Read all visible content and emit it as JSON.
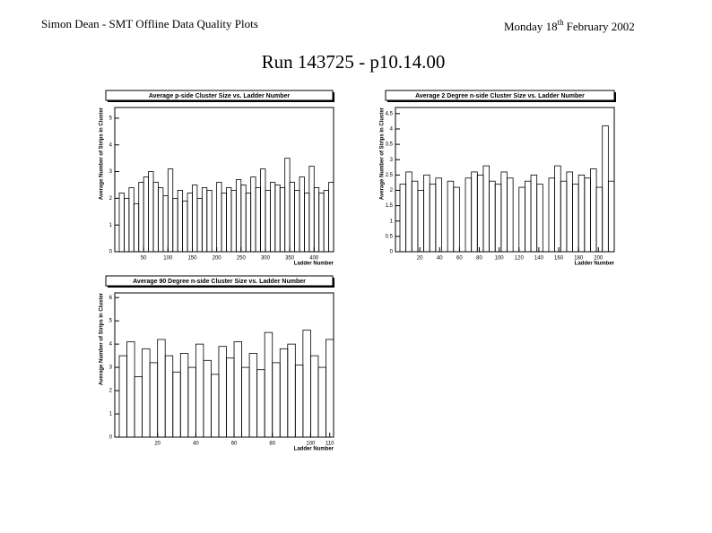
{
  "header": {
    "left": "Simon Dean - SMT Offline Data Quality Plots",
    "date_day": "Monday 18",
    "date_sup": "th",
    "date_rest": "February 2002",
    "title": "Run 143725 - p10.14.00"
  },
  "chart_data": [
    {
      "type": "histogram",
      "title": "Average p-side Cluster Size vs. Ladder Number",
      "x_label": "Ladder Number",
      "y_label": "Average Number of Strips in Cluster",
      "bins": [
        0,
        10,
        20,
        30,
        40,
        50,
        60,
        70,
        80,
        90,
        100,
        110,
        120,
        130,
        140,
        150,
        160,
        170,
        180,
        190,
        200,
        210,
        220,
        230,
        240,
        250,
        260,
        270,
        280,
        290,
        300,
        310,
        320,
        330,
        340,
        350,
        360,
        370,
        380,
        390,
        400,
        410,
        420,
        430,
        440
      ],
      "values": [
        2.2,
        2.0,
        2.4,
        1.8,
        2.6,
        2.8,
        3.0,
        2.6,
        2.4,
        2.1,
        3.1,
        2.0,
        2.3,
        1.9,
        2.2,
        2.5,
        2.0,
        2.4,
        2.3,
        0,
        2.6,
        2.2,
        2.4,
        2.3,
        2.7,
        2.5,
        2.2,
        2.8,
        2.4,
        3.1,
        2.3,
        2.6,
        2.5,
        2.4,
        3.5,
        2.6,
        2.3,
        2.8,
        2.2,
        3.2,
        2.4,
        2.2,
        2.3,
        2.6
      ],
      "xlim": [
        0,
        440
      ],
      "xticks": [
        50,
        100,
        150,
        200,
        250,
        300,
        350,
        400
      ],
      "ylim": [
        0,
        5.4
      ],
      "yticks": [
        0,
        1,
        2,
        3,
        4,
        5
      ],
      "color": "#000000"
    },
    {
      "type": "histogram",
      "title": "Average 2 Degree n-side Cluster Size vs. Ladder Number",
      "x_label": "Ladder Number",
      "y_label": "Average Number of Strips in Cluster",
      "bins": [
        0,
        6,
        12,
        18,
        24,
        30,
        36,
        42,
        48,
        54,
        60,
        66,
        72,
        78,
        84,
        90,
        96,
        102,
        108,
        114,
        120,
        126,
        132,
        138,
        144,
        150,
        156,
        162,
        168,
        174,
        180,
        186,
        192,
        198,
        204,
        210,
        216
      ],
      "values": [
        2.2,
        2.6,
        2.3,
        2.0,
        2.5,
        2.2,
        2.4,
        0,
        2.3,
        2.1,
        0,
        2.4,
        2.6,
        2.5,
        2.8,
        2.3,
        2.2,
        2.6,
        2.4,
        0,
        2.1,
        2.3,
        2.5,
        2.2,
        0,
        2.4,
        2.8,
        2.3,
        2.6,
        2.2,
        2.5,
        2.4,
        2.7,
        2.1,
        4.1,
        2.3
      ],
      "xlim": [
        0,
        216
      ],
      "xticks": [
        20,
        40,
        60,
        80,
        100,
        120,
        140,
        160,
        180,
        200
      ],
      "ylim": [
        0,
        4.7
      ],
      "yticks": [
        0,
        0.5,
        1,
        1.5,
        2,
        2.5,
        3,
        3.5,
        4,
        4.5
      ],
      "color": "#000000"
    },
    {
      "type": "histogram",
      "title": "Average 90 Degree n-side Cluster Size vs. Ladder Number",
      "x_label": "Ladder Number",
      "y_label": "Average Number of Strips in Cluster",
      "bins": [
        0,
        4,
        8,
        12,
        16,
        20,
        24,
        28,
        32,
        36,
        40,
        44,
        48,
        52,
        56,
        60,
        64,
        68,
        72,
        76,
        80,
        84,
        88,
        92,
        96,
        100,
        104,
        108,
        112
      ],
      "values": [
        3.5,
        4.1,
        2.6,
        3.8,
        3.2,
        4.2,
        3.5,
        2.8,
        3.6,
        3.0,
        4.0,
        3.3,
        2.7,
        3.9,
        3.4,
        4.1,
        3.0,
        3.6,
        2.9,
        4.5,
        3.2,
        3.8,
        4.0,
        3.1,
        4.6,
        3.5,
        3.0,
        4.2
      ],
      "xlim": [
        0,
        112
      ],
      "xticks": [
        20,
        40,
        60,
        80,
        100,
        110
      ],
      "ylim": [
        0,
        6.2
      ],
      "yticks": [
        0,
        1,
        2,
        3,
        4,
        5,
        6
      ],
      "color": "#000000"
    }
  ]
}
